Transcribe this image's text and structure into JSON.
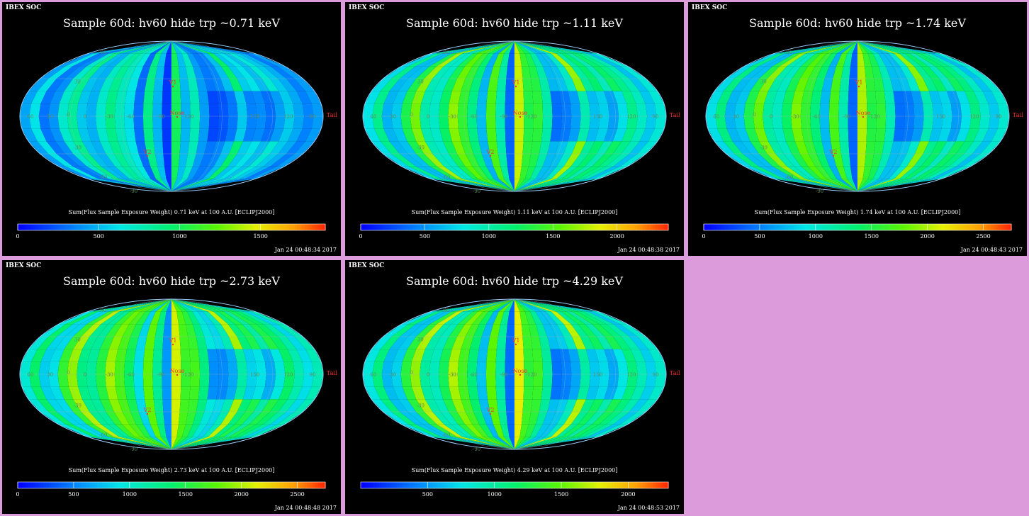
{
  "panels": [
    {
      "soc": "IBEX SOC",
      "title": "Sample 60d: hv60 hide trp ~0.71 keV",
      "cb_label": "Sum(Flux Sample Exposure Weight)  0.71 keV at 100 A.U. [ECLIPJ2000]",
      "cb_max": 1900,
      "ticks": [
        "0",
        "500",
        "1000",
        "1500"
      ],
      "tick_values": [
        0,
        500,
        1000,
        1500
      ],
      "timestamp": "Jan 24 00:48:34 2017"
    },
    {
      "soc": "IBEX SOC",
      "title": "Sample 60d: hv60 hide trp ~1.11 keV",
      "cb_label": "Sum(Flux Sample Exposure Weight)  1.11 keV at 100 A.U. [ECLIPJ2000]",
      "cb_max": 2400,
      "ticks": [
        "0",
        "500",
        "1000",
        "1500",
        "2000"
      ],
      "tick_values": [
        0,
        500,
        1000,
        1500,
        2000
      ],
      "timestamp": "Jan 24 00:48:38 2017"
    },
    {
      "soc": "IBEX SOC",
      "title": "Sample 60d: hv60 hide trp ~1.74 keV",
      "cb_label": "Sum(Flux Sample Exposure Weight)  1.74 keV at 100 A.U. [ECLIPJ2000]",
      "cb_max": 2750,
      "ticks": [
        "0",
        "500",
        "1000",
        "1500",
        "2000",
        "2500"
      ],
      "tick_values": [
        0,
        500,
        1000,
        1500,
        2000,
        2500
      ],
      "timestamp": "Jan 24 00:48:43 2017"
    },
    {
      "soc": "IBEX SOC",
      "title": "Sample 60d: hv60 hide trp ~2.73 keV",
      "cb_label": "Sum(Flux Sample Exposure Weight)  2.73 keV at 100 A.U. [ECLIPJ2000]",
      "cb_max": 2750,
      "ticks": [
        "0",
        "500",
        "1000",
        "1500",
        "2000",
        "2500"
      ],
      "tick_values": [
        0,
        500,
        1000,
        1500,
        2000,
        2500
      ],
      "timestamp": "Jan 24 00:48:48 2017"
    },
    {
      "soc": "IBEX SOC",
      "title": "Sample 60d: hv60 hide trp ~4.29 keV",
      "cb_label": "Sum(Flux Sample Exposure Weight)  4.29 keV at 100 A.U. [ECLIPJ2000]",
      "cb_max": 2300,
      "ticks": [
        "500",
        "1000",
        "1500",
        "2000"
      ],
      "tick_values": [
        500,
        1000,
        1500,
        2000
      ],
      "timestamp": "Jan 24 00:48:53 2017"
    }
  ],
  "map_labels": {
    "lat": [
      "60",
      "30",
      "0",
      "-30",
      "-60",
      "-90"
    ],
    "lon": [
      "60",
      "30",
      "0",
      "-30",
      "-60",
      "-90",
      "-120",
      "150",
      "120",
      "90"
    ],
    "markers": [
      "V1",
      "V2",
      "Nose",
      "Tail"
    ]
  },
  "colors": {
    "background": "#000000",
    "page": "#dc9cdc",
    "marker": "#ff3030",
    "grid": "#b0b0b0"
  },
  "chart_data": {
    "type": "heatmap",
    "projection": "Mollweide all-sky map",
    "note_colorscale": "blue-cyan-green-yellow-red",
    "maps": [
      {
        "energy": "0.71 keV",
        "colorbar_range": [
          0,
          1900
        ],
        "stripes": [
          450,
          620,
          300,
          400,
          700,
          820,
          550,
          480,
          680,
          900,
          740,
          600,
          300,
          880,
          480,
          150,
          1000,
          480,
          780,
          420,
          300,
          380,
          520,
          900,
          580,
          620,
          480,
          720,
          550,
          440,
          350,
          420
        ]
      },
      {
        "energy": "1.11 keV",
        "colorbar_range": [
          0,
          2400
        ],
        "stripes": [
          800,
          1100,
          600,
          700,
          1300,
          1600,
          1000,
          900,
          1200,
          1700,
          1400,
          1100,
          650,
          1500,
          950,
          350,
          1800,
          1300,
          1400,
          1000,
          600,
          700,
          900,
          1600,
          1100,
          1200,
          900,
          1300,
          1100,
          900,
          700,
          850
        ]
      },
      {
        "energy": "1.74 keV",
        "colorbar_range": [
          0,
          2750
        ],
        "stripes": [
          900,
          1300,
          700,
          800,
          1500,
          1800,
          1200,
          1050,
          1400,
          1900,
          1600,
          1300,
          750,
          1700,
          1100,
          400,
          2000,
          1500,
          1600,
          1100,
          700,
          800,
          1000,
          1800,
          1300,
          1400,
          1000,
          1500,
          1300,
          1000,
          800,
          1000
        ]
      },
      {
        "energy": "2.73 keV",
        "colorbar_range": [
          0,
          2750
        ],
        "stripes": [
          1000,
          1400,
          800,
          900,
          1600,
          1900,
          1300,
          1200,
          1500,
          2000,
          1700,
          1400,
          900,
          1800,
          1200,
          600,
          2100,
          1600,
          1700,
          1300,
          900,
          900,
          1100,
          1900,
          1400,
          1500,
          1100,
          1600,
          1400,
          1100,
          900,
          1100
        ]
      },
      {
        "energy": "4.29 keV",
        "colorbar_range": [
          0,
          2300
        ],
        "stripes": [
          800,
          1100,
          600,
          700,
          1300,
          1600,
          1000,
          900,
          1200,
          1700,
          1400,
          1100,
          650,
          1500,
          950,
          350,
          1800,
          1300,
          1400,
          1000,
          600,
          700,
          900,
          1600,
          1100,
          1200,
          900,
          1300,
          1100,
          900,
          700,
          850
        ]
      }
    ]
  }
}
